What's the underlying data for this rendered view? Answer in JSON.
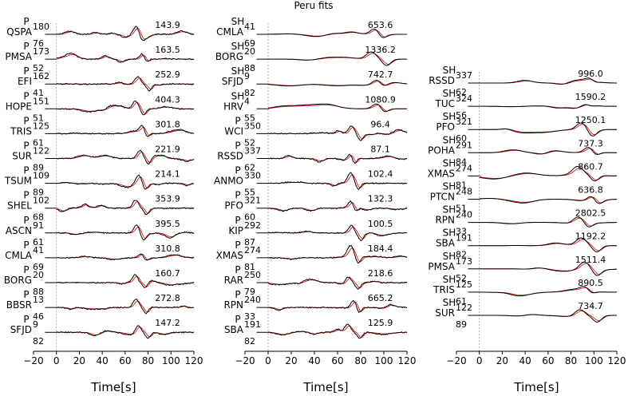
{
  "chart_data": {
    "type": "line",
    "title": "Peru fits",
    "xlabel": "Time[s]",
    "xlim": [
      -20,
      120
    ],
    "xticks": [
      "−20",
      "0",
      "20",
      "40",
      "60",
      "80",
      "100",
      "120"
    ],
    "series_colors": {
      "observed": "#000000",
      "synthetic": "#dd0000"
    },
    "panels": [
      {
        "traces": [
          {
            "phase": "P",
            "station": "QSPA",
            "az": "180",
            "dist": "76",
            "amp": "143.9"
          },
          {
            "phase": "P",
            "station": "PMSA",
            "az": "173",
            "dist": "52",
            "amp": "163.5"
          },
          {
            "phase": "P",
            "station": "EFI",
            "az": "162",
            "dist": "41",
            "amp": "252.9"
          },
          {
            "phase": "P",
            "station": "HOPE",
            "az": "151",
            "dist": "51",
            "amp": "404.3"
          },
          {
            "phase": "P",
            "station": "TRIS",
            "az": "125",
            "dist": "61",
            "amp": "301.8"
          },
          {
            "phase": "P",
            "station": "SUR",
            "az": "122",
            "dist": "89",
            "amp": "221.9"
          },
          {
            "phase": "P",
            "station": "TSUM",
            "az": "109",
            "dist": "89",
            "amp": "214.1"
          },
          {
            "phase": "P",
            "station": "SHEL",
            "az": "102",
            "dist": "68",
            "amp": "353.9"
          },
          {
            "phase": "P",
            "station": "ASCN",
            "az": "91",
            "dist": "61",
            "amp": "395.5"
          },
          {
            "phase": "P",
            "station": "CMLA",
            "az": "41",
            "dist": "69",
            "amp": "310.8"
          },
          {
            "phase": "P",
            "station": "BORG",
            "az": "20",
            "dist": "88",
            "amp": "160.7"
          },
          {
            "phase": "P",
            "station": "BBSR",
            "az": "13",
            "dist": "46",
            "amp": "272.8"
          },
          {
            "phase": "P",
            "station": "SFJD",
            "az": "9",
            "dist": "82",
            "amp": "147.2"
          }
        ]
      },
      {
        "traces": [
          {
            "phase": "SH",
            "station": "CMLA",
            "az": "41",
            "dist": "69",
            "amp": "653.6"
          },
          {
            "phase": "SH",
            "station": "BORG",
            "az": "20",
            "dist": "88",
            "amp": "1336.2"
          },
          {
            "phase": "SH",
            "station": "SFJD",
            "az": "9",
            "dist": "82",
            "amp": "742.7"
          },
          {
            "phase": "SH",
            "station": "HRV",
            "az": "4",
            "dist": "55",
            "amp": "1080.9"
          },
          {
            "phase": "P",
            "station": "WCI",
            "az": "350",
            "dist": "52",
            "amp": "96.4"
          },
          {
            "phase": "P",
            "station": "RSSD",
            "az": "337",
            "dist": "62",
            "amp": "87.1"
          },
          {
            "phase": "P",
            "station": "ANMO",
            "az": "330",
            "dist": "55",
            "amp": "102.4"
          },
          {
            "phase": "P",
            "station": "PFO",
            "az": "321",
            "dist": "60",
            "amp": "132.3"
          },
          {
            "phase": "P",
            "station": "KIP",
            "az": "292",
            "dist": "87",
            "amp": "100.5"
          },
          {
            "phase": "P",
            "station": "XMAS",
            "az": "274",
            "dist": "81",
            "amp": "184.4"
          },
          {
            "phase": "P",
            "station": "RAR",
            "az": "250",
            "dist": "79",
            "amp": "218.6"
          },
          {
            "phase": "P",
            "station": "RPN",
            "az": "240",
            "dist": "33",
            "amp": "665.2"
          },
          {
            "phase": "P",
            "station": "SBA",
            "az": "191",
            "dist": "82",
            "amp": "125.9"
          }
        ]
      },
      {
        "traces": [
          {
            "phase": "SH",
            "station": "RSSD",
            "az": "337",
            "dist": "62",
            "amp": "996.0"
          },
          {
            "phase": "SH",
            "station": "TUC",
            "az": "324",
            "dist": "56",
            "amp": "1590.2"
          },
          {
            "phase": "SH",
            "station": "PFO",
            "az": "321",
            "dist": "60",
            "amp": "1250.1"
          },
          {
            "phase": "SH",
            "station": "POHA",
            "az": "291",
            "dist": "84",
            "amp": "737.3"
          },
          {
            "phase": "SH",
            "station": "XMAS",
            "az": "274",
            "dist": "81",
            "amp": "860.7"
          },
          {
            "phase": "SH",
            "station": "PTCN",
            "az": "248",
            "dist": "51",
            "amp": "636.8"
          },
          {
            "phase": "SH",
            "station": "RPN",
            "az": "240",
            "dist": "33",
            "amp": "2802.5"
          },
          {
            "phase": "SH",
            "station": "SBA",
            "az": "191",
            "dist": "82",
            "amp": "1192.2"
          },
          {
            "phase": "SH",
            "station": "PMSA",
            "az": "173",
            "dist": "52",
            "amp": "1511.4"
          },
          {
            "phase": "SH",
            "station": "TRIS",
            "az": "125",
            "dist": "61",
            "amp": "890.5"
          },
          {
            "phase": "SH",
            "station": "SUR",
            "az": "122",
            "dist": "89",
            "amp": "734.7"
          }
        ]
      }
    ]
  }
}
